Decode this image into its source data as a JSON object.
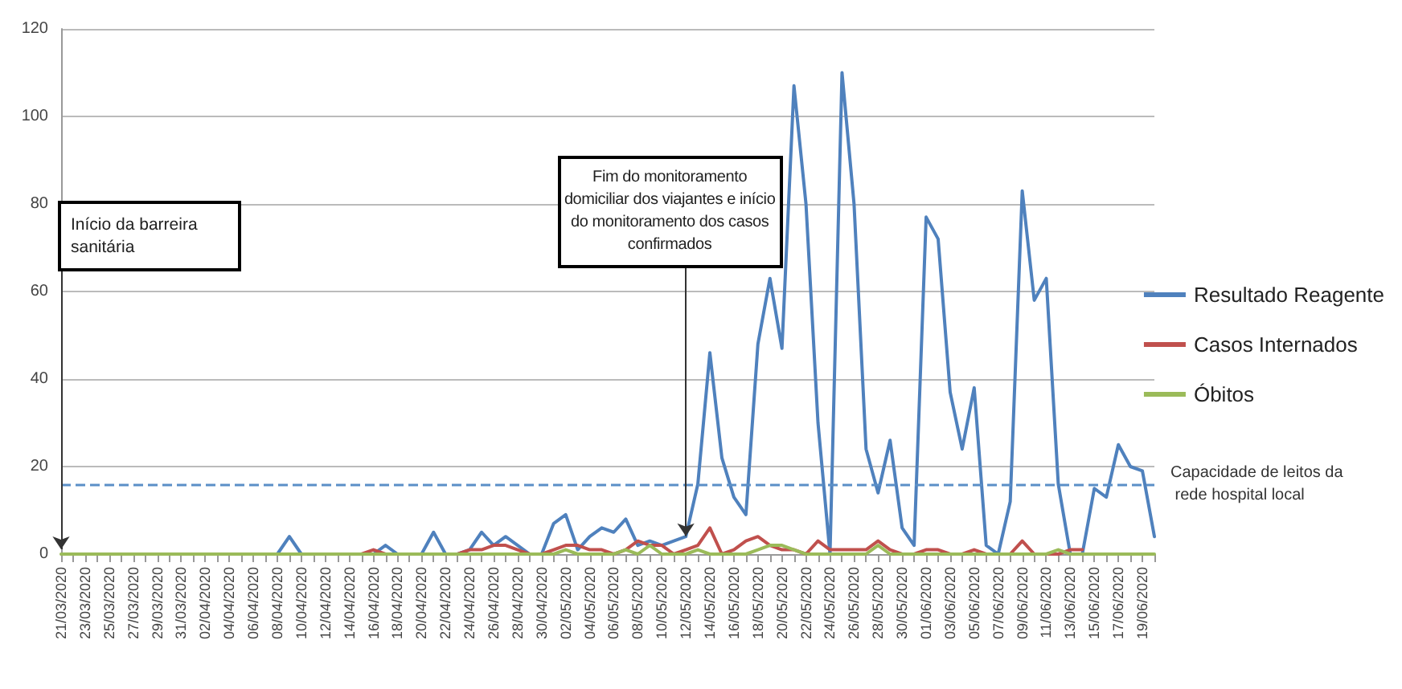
{
  "chart_data": {
    "type": "line",
    "categories": [
      "21/03/2020",
      null,
      "23/03/2020",
      null,
      "25/03/2020",
      null,
      "27/03/2020",
      null,
      "29/03/2020",
      null,
      "31/03/2020",
      null,
      "02/04/2020",
      null,
      "04/04/2020",
      null,
      "06/04/2020",
      null,
      "08/04/2020",
      null,
      "10/04/2020",
      null,
      "12/04/2020",
      null,
      "14/04/2020",
      null,
      "16/04/2020",
      null,
      "18/04/2020",
      null,
      "20/04/2020",
      null,
      "22/04/2020",
      null,
      "24/04/2020",
      null,
      "26/04/2020",
      null,
      "28/04/2020",
      null,
      "30/04/2020",
      null,
      "02/05/2020",
      null,
      "04/05/2020",
      null,
      "06/05/2020",
      null,
      "08/05/2020",
      null,
      "10/05/2020",
      null,
      "12/05/2020",
      null,
      "14/05/2020",
      null,
      "16/05/2020",
      null,
      "18/05/2020",
      null,
      "20/05/2020",
      null,
      "22/05/2020",
      null,
      "24/05/2020",
      null,
      "26/05/2020",
      null,
      "28/05/2020",
      null,
      "30/05/2020",
      null,
      "01/06/2020",
      null,
      "03/06/2020",
      null,
      "05/06/2020",
      null,
      "07/06/2020",
      null,
      "09/06/2020",
      null,
      "11/06/2020",
      null,
      "13/06/2020",
      null,
      "15/06/2020",
      null,
      "17/06/2020",
      null,
      "19/06/2020",
      null
    ],
    "series": [
      {
        "name": "Resultado Reagente",
        "color": "#4f81bd",
        "values": [
          null,
          null,
          null,
          null,
          null,
          null,
          null,
          null,
          null,
          null,
          null,
          null,
          null,
          null,
          null,
          null,
          null,
          0,
          0,
          4,
          0,
          0,
          0,
          0,
          0,
          0,
          0,
          2,
          0,
          0,
          0,
          5,
          0,
          0,
          1,
          5,
          2,
          4,
          2,
          0,
          0,
          7,
          9,
          1,
          4,
          6,
          5,
          8,
          2,
          3,
          2,
          3,
          4,
          16,
          46,
          22,
          13,
          9,
          48,
          63,
          47,
          107,
          80,
          30,
          0,
          110,
          80,
          24,
          14,
          26,
          6,
          2,
          77,
          72,
          37,
          24,
          38,
          2,
          0,
          12,
          83,
          58,
          63,
          16,
          0,
          0,
          15,
          13,
          25,
          20,
          19,
          4
        ]
      },
      {
        "name": "Casos Internados",
        "color": "#c0504d",
        "values": [
          null,
          null,
          null,
          null,
          null,
          null,
          null,
          null,
          null,
          null,
          null,
          null,
          null,
          null,
          null,
          null,
          null,
          null,
          null,
          null,
          null,
          null,
          null,
          null,
          0,
          0,
          1,
          0,
          0,
          0,
          0,
          0,
          0,
          0,
          1,
          1,
          2,
          2,
          1,
          0,
          0,
          1,
          2,
          2,
          1,
          1,
          0,
          1,
          3,
          2,
          2,
          0,
          1,
          2,
          6,
          0,
          1,
          3,
          4,
          2,
          1,
          1,
          0,
          3,
          1,
          1,
          1,
          1,
          3,
          1,
          0,
          0,
          1,
          1,
          0,
          0,
          1,
          0,
          0,
          0,
          3,
          0,
          0,
          0,
          1,
          1,
          null,
          null,
          null,
          null,
          null,
          null
        ]
      },
      {
        "name": "Óbitos",
        "color": "#9bbb59",
        "values": [
          0,
          0,
          0,
          0,
          0,
          0,
          0,
          0,
          0,
          0,
          0,
          0,
          0,
          0,
          0,
          0,
          0,
          0,
          0,
          0,
          0,
          0,
          0,
          0,
          0,
          0,
          0,
          0,
          0,
          0,
          0,
          0,
          0,
          0,
          0,
          0,
          0,
          0,
          0,
          0,
          0,
          0,
          1,
          0,
          0,
          0,
          0,
          1,
          0,
          2,
          0,
          0,
          0,
          1,
          0,
          0,
          0,
          0,
          1,
          2,
          2,
          1,
          0,
          0,
          0,
          0,
          0,
          0,
          2,
          0,
          0,
          0,
          0,
          0,
          0,
          0,
          0,
          0,
          0,
          0,
          0,
          0,
          0,
          1,
          0,
          0,
          0,
          0,
          0,
          0,
          0,
          0
        ]
      }
    ],
    "ylim": [
      0,
      120
    ],
    "yticks": [
      0,
      20,
      40,
      60,
      80,
      100,
      120
    ],
    "grid": "y",
    "legend": "right",
    "marker": "none",
    "line_style": "solid",
    "ref_lines": [
      {
        "axis": "y",
        "value": 16,
        "label": "Capacidade de leitos da rede hospital local",
        "color": "#5b8fc7",
        "line_style": "dashed"
      }
    ],
    "annotations": [
      {
        "text": "Início da barreira sanitária",
        "x": "21/03/2020",
        "y": 0
      },
      {
        "text": "Fim do monitoramento domiciliar dos viajantes e início do monitoramento dos casos confirmados",
        "x": "12/05/2020",
        "y": 3
      }
    ]
  }
}
